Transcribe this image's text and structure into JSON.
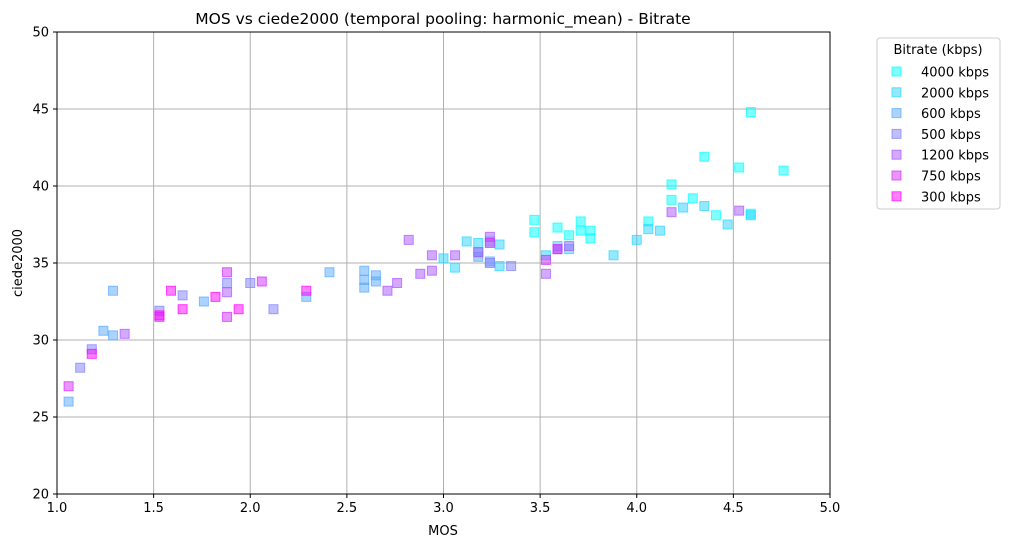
{
  "chart_data": {
    "type": "scatter",
    "title": "MOS vs ciede2000 (temporal pooling: harmonic_mean) - Bitrate",
    "xlabel": "MOS",
    "ylabel": "ciede2000",
    "xlim": [
      1.0,
      5.0
    ],
    "ylim": [
      20,
      50
    ],
    "xticks": [
      "1.0",
      "1.5",
      "2.0",
      "2.5",
      "3.0",
      "3.5",
      "4.0",
      "4.5",
      "5.0"
    ],
    "yticks": [
      "20",
      "25",
      "30",
      "35",
      "40",
      "45",
      "50"
    ],
    "grid": true,
    "legend": {
      "title": "Bitrate (kbps)",
      "placement": "outside-top-right"
    },
    "series": [
      {
        "name": "4000 kbps",
        "color": "#00ffff",
        "points": [
          [
            3.47,
            37.8
          ],
          [
            3.47,
            37.0
          ],
          [
            3.59,
            37.3
          ],
          [
            3.65,
            36.8
          ],
          [
            3.71,
            37.7
          ],
          [
            3.71,
            37.1
          ],
          [
            3.76,
            37.1
          ],
          [
            3.76,
            36.6
          ],
          [
            4.06,
            37.7
          ],
          [
            4.18,
            40.1
          ],
          [
            4.18,
            39.1
          ],
          [
            4.29,
            39.2
          ],
          [
            4.35,
            41.9
          ],
          [
            4.41,
            38.1
          ],
          [
            4.53,
            41.2
          ],
          [
            4.59,
            44.8
          ],
          [
            4.59,
            38.2
          ],
          [
            4.76,
            41.0
          ]
        ]
      },
      {
        "name": "2000 kbps",
        "color": "#2bd4ff",
        "points": [
          [
            3.0,
            35.3
          ],
          [
            3.06,
            34.7
          ],
          [
            3.12,
            36.4
          ],
          [
            3.18,
            36.3
          ],
          [
            3.24,
            36.4
          ],
          [
            3.29,
            36.2
          ],
          [
            3.29,
            34.8
          ],
          [
            3.53,
            35.5
          ],
          [
            3.59,
            36.1
          ],
          [
            3.65,
            35.9
          ],
          [
            3.88,
            35.5
          ],
          [
            4.0,
            36.5
          ],
          [
            4.06,
            37.2
          ],
          [
            4.12,
            37.1
          ],
          [
            4.24,
            38.6
          ],
          [
            4.35,
            38.7
          ],
          [
            4.47,
            37.5
          ],
          [
            4.59,
            38.1
          ],
          [
            3.18,
            35.7
          ]
        ]
      },
      {
        "name": "600 kbps",
        "color": "#55aaff",
        "points": [
          [
            1.06,
            26.0
          ],
          [
            1.24,
            30.6
          ],
          [
            1.29,
            33.2
          ],
          [
            1.29,
            30.3
          ],
          [
            1.76,
            32.5
          ],
          [
            2.29,
            32.8
          ],
          [
            2.41,
            34.4
          ],
          [
            2.59,
            34.5
          ],
          [
            2.59,
            33.9
          ],
          [
            2.59,
            33.4
          ],
          [
            2.65,
            34.2
          ],
          [
            2.65,
            33.8
          ],
          [
            3.24,
            35.1
          ],
          [
            3.18,
            35.4
          ]
        ]
      },
      {
        "name": "500 kbps",
        "color": "#807fff",
        "points": [
          [
            1.12,
            28.2
          ],
          [
            1.18,
            29.4
          ],
          [
            1.53,
            31.9
          ],
          [
            1.65,
            32.9
          ],
          [
            1.88,
            33.7
          ],
          [
            2.0,
            33.7
          ],
          [
            2.12,
            32.0
          ],
          [
            3.35,
            34.8
          ],
          [
            3.24,
            35.0
          ]
        ]
      },
      {
        "name": "1200 kbps",
        "color": "#aa55ff",
        "points": [
          [
            1.35,
            30.4
          ],
          [
            1.88,
            33.1
          ],
          [
            2.71,
            33.2
          ],
          [
            2.76,
            33.7
          ],
          [
            2.82,
            36.5
          ],
          [
            2.88,
            34.3
          ],
          [
            2.94,
            34.5
          ],
          [
            2.94,
            35.5
          ],
          [
            3.06,
            35.5
          ],
          [
            3.18,
            35.7
          ],
          [
            3.24,
            36.7
          ],
          [
            3.53,
            34.3
          ],
          [
            3.59,
            35.9
          ],
          [
            3.65,
            36.1
          ],
          [
            4.18,
            38.3
          ],
          [
            4.53,
            38.4
          ]
        ]
      },
      {
        "name": "750 kbps",
        "color": "#d42bff",
        "points": [
          [
            1.06,
            27.0
          ],
          [
            1.53,
            31.5
          ],
          [
            1.88,
            34.4
          ],
          [
            1.88,
            31.5
          ],
          [
            2.06,
            33.8
          ],
          [
            3.24,
            36.3
          ],
          [
            3.53,
            35.2
          ],
          [
            3.59,
            35.9
          ]
        ]
      },
      {
        "name": "300 kbps",
        "color": "#ff00ff",
        "points": [
          [
            1.18,
            29.1
          ],
          [
            1.53,
            31.6
          ],
          [
            1.59,
            33.2
          ],
          [
            1.65,
            32.0
          ],
          [
            1.82,
            32.8
          ],
          [
            1.94,
            32.0
          ],
          [
            2.29,
            33.2
          ]
        ]
      }
    ]
  }
}
